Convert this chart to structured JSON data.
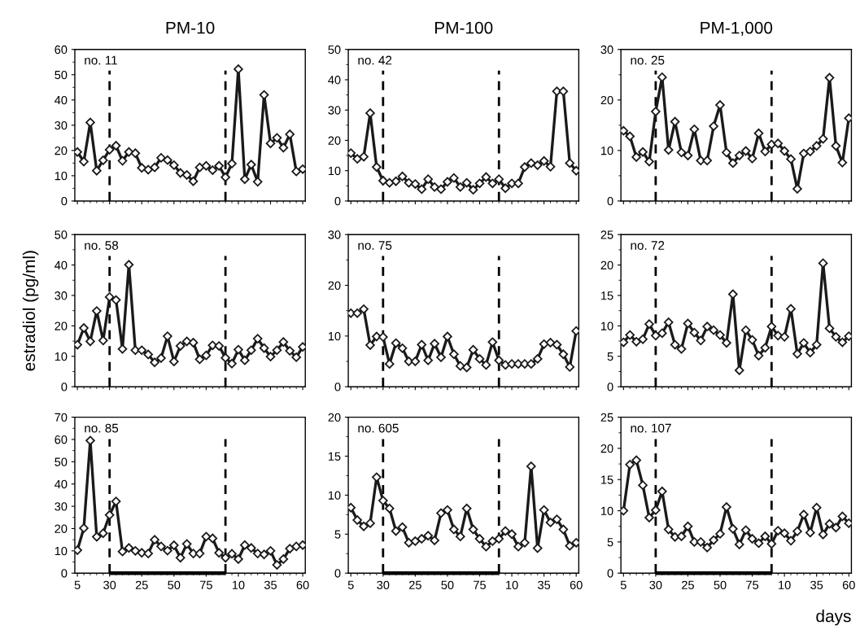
{
  "chart_data": [
    {
      "type": "line",
      "title": "PM-10",
      "annotations": [
        "no. 11"
      ],
      "categories": [
        "5",
        null,
        null,
        null,
        null,
        "30",
        null,
        null,
        null,
        null,
        "25",
        null,
        null,
        null,
        null,
        "50",
        null,
        null,
        null,
        null,
        "75",
        null,
        null,
        null,
        null,
        "10",
        null,
        null,
        null,
        null,
        "35",
        null,
        null,
        null,
        null,
        "60"
      ],
      "ylim": [
        0,
        60
      ],
      "yticks": [
        0,
        10,
        20,
        30,
        40,
        50,
        60
      ],
      "tick_labels": "y",
      "marker": "diamond",
      "line_style": "solid",
      "series": [
        {
          "color": "#1a1a1a",
          "values": [
            19.4,
            15.6,
            31.1,
            12,
            16.1,
            20.3,
            21.9,
            15.9,
            19.4,
            18.9,
            13.1,
            12.4,
            13.3,
            17.1,
            16.2,
            14.2,
            11.1,
            10.3,
            7.8,
            13.3,
            13.9,
            12.2,
            13.9,
            9.4,
            14.8,
            52.2,
            8.6,
            14.4,
            7.6,
            42,
            22.8,
            25,
            21.1,
            26.4,
            11.7,
            12.6
          ]
        }
      ]
    },
    {
      "type": "line",
      "title": "PM-100",
      "annotations": [
        "no. 42"
      ],
      "categories": [
        "5",
        null,
        null,
        null,
        null,
        "30",
        null,
        null,
        null,
        null,
        "25",
        null,
        null,
        null,
        null,
        "50",
        null,
        null,
        null,
        null,
        "75",
        null,
        null,
        null,
        null,
        "10",
        null,
        null,
        null,
        null,
        "35",
        null,
        null,
        null,
        null,
        "60"
      ],
      "ylim": [
        0,
        50
      ],
      "yticks": [
        0,
        10,
        20,
        30,
        40,
        50
      ],
      "tick_labels": "y",
      "marker": "diamond",
      "line_style": "solid",
      "series": [
        {
          "color": "#1a1a1a",
          "values": [
            15.8,
            13.9,
            14.6,
            29,
            11.2,
            6.7,
            6.0,
            6.5,
            8.1,
            6.0,
            5.6,
            3.9,
            7.2,
            4.6,
            3.9,
            6.3,
            7.6,
            4.6,
            6.0,
            3.7,
            5.8,
            7.9,
            5.8,
            7.2,
            4.2,
            5.8,
            5.8,
            11.2,
            12.5,
            11.8,
            13.2,
            11.3,
            36.2,
            36.2,
            12.5,
            10.0
          ]
        }
      ]
    },
    {
      "type": "line",
      "title": "PM-1,000",
      "annotations": [
        "no. 25"
      ],
      "categories": [
        "5",
        null,
        null,
        null,
        null,
        "30",
        null,
        null,
        null,
        null,
        "25",
        null,
        null,
        null,
        null,
        "50",
        null,
        null,
        null,
        null,
        "75",
        null,
        null,
        null,
        null,
        "10",
        null,
        null,
        null,
        null,
        "35",
        null,
        null,
        null,
        null,
        "60"
      ],
      "ylim": [
        0,
        30
      ],
      "yticks": [
        0,
        10,
        20,
        30
      ],
      "tick_labels": "y",
      "marker": "diamond",
      "line_style": "solid",
      "series": [
        {
          "color": "#1a1a1a",
          "values": [
            13.9,
            12.8,
            8.7,
            9.7,
            7.8,
            17.7,
            24.5,
            10.1,
            15.7,
            9.6,
            9.0,
            14.2,
            8.0,
            8.0,
            14.8,
            19.0,
            9.6,
            7.5,
            9.0,
            9.9,
            8.4,
            13.4,
            9.8,
            11.2,
            11.4,
            9.9,
            8.3,
            2.4,
            9.4,
            9.8,
            10.9,
            12.3,
            24.4,
            10.9,
            7.6,
            16.4
          ]
        }
      ]
    },
    {
      "type": "line",
      "ylabel": "estradiol (pg/ml)",
      "annotations": [
        "no. 58"
      ],
      "categories": [
        "5",
        null,
        null,
        null,
        null,
        "30",
        null,
        null,
        null,
        null,
        "25",
        null,
        null,
        null,
        null,
        "50",
        null,
        null,
        null,
        null,
        "75",
        null,
        null,
        null,
        null,
        "10",
        null,
        null,
        null,
        null,
        "35",
        null,
        null,
        null,
        null,
        "60"
      ],
      "ylim": [
        0,
        50
      ],
      "yticks": [
        0,
        10,
        20,
        30,
        40,
        50
      ],
      "tick_labels": "y",
      "marker": "diamond",
      "line_style": "solid",
      "series": [
        {
          "color": "#1a1a1a",
          "values": [
            13.8,
            19.3,
            14.9,
            24.9,
            15.2,
            29.5,
            28.5,
            12.4,
            40.1,
            12.0,
            12.0,
            10.6,
            8.0,
            9.4,
            16.6,
            8.3,
            13.4,
            14.9,
            14.5,
            9.0,
            10.3,
            13.6,
            13.4,
            9.5,
            7.6,
            12.2,
            8.7,
            12.0,
            15.8,
            12.7,
            9.9,
            12.0,
            14.7,
            11.8,
            9.7,
            13.1
          ]
        }
      ]
    },
    {
      "type": "line",
      "annotations": [
        "no. 75"
      ],
      "categories": [
        "5",
        null,
        null,
        null,
        null,
        "30",
        null,
        null,
        null,
        null,
        "25",
        null,
        null,
        null,
        null,
        "50",
        null,
        null,
        null,
        null,
        "75",
        null,
        null,
        null,
        null,
        "10",
        null,
        null,
        null,
        null,
        "35",
        null,
        null,
        null,
        null,
        "60"
      ],
      "ylim": [
        0,
        30
      ],
      "yticks": [
        0,
        10,
        20,
        30
      ],
      "tick_labels": "y",
      "marker": "diamond",
      "line_style": "solid",
      "series": [
        {
          "color": "#1a1a1a",
          "values": [
            14.5,
            14.5,
            15.3,
            8.2,
            9.9,
            9.8,
            4.5,
            8.6,
            7.6,
            5.0,
            5.0,
            8.3,
            5.2,
            8.5,
            5.8,
            9.9,
            6.4,
            4.1,
            3.8,
            7.3,
            5.5,
            4.3,
            8.8,
            5.2,
            4.3,
            4.5,
            4.5,
            4.5,
            4.5,
            5.5,
            8.4,
            8.7,
            8.3,
            6.4,
            3.9,
            11.0
          ]
        }
      ]
    },
    {
      "type": "line",
      "annotations": [
        "no. 72"
      ],
      "categories": [
        "5",
        null,
        null,
        null,
        null,
        "30",
        null,
        null,
        null,
        null,
        "25",
        null,
        null,
        null,
        null,
        "50",
        null,
        null,
        null,
        null,
        "75",
        null,
        null,
        null,
        null,
        "10",
        null,
        null,
        null,
        null,
        "35",
        null,
        null,
        null,
        null,
        "60"
      ],
      "ylim": [
        0,
        25
      ],
      "yticks": [
        0,
        5,
        10,
        15,
        20,
        25
      ],
      "tick_labels": "y",
      "marker": "diamond",
      "line_style": "solid",
      "series": [
        {
          "color": "#1a1a1a",
          "values": [
            7.3,
            8.5,
            7.4,
            7.8,
            10.3,
            8.4,
            8.8,
            10.6,
            6.9,
            6.2,
            10.4,
            8.9,
            7.6,
            9.9,
            9.3,
            8.5,
            7.2,
            15.2,
            2.7,
            9.3,
            7.7,
            5.1,
            6.4,
            9.9,
            8.4,
            8.2,
            12.8,
            5.4,
            7.2,
            5.6,
            6.9,
            20.3,
            9.6,
            8.2,
            7.3,
            8.3
          ]
        }
      ]
    },
    {
      "type": "line",
      "annotations": [
        "no. 85"
      ],
      "categories": [
        "5",
        null,
        null,
        null,
        null,
        "30",
        null,
        null,
        null,
        null,
        "25",
        null,
        null,
        null,
        null,
        "50",
        null,
        null,
        null,
        null,
        "75",
        null,
        null,
        null,
        null,
        "10",
        null,
        null,
        null,
        null,
        "35",
        null,
        null,
        null,
        null,
        "60"
      ],
      "ylim": [
        0,
        70
      ],
      "yticks": [
        0,
        10,
        20,
        30,
        40,
        50,
        60,
        70
      ],
      "marker": "diamond",
      "line_style": "solid",
      "series": [
        {
          "color": "#1a1a1a",
          "values": [
            10.3,
            20.2,
            59.5,
            16.3,
            17.9,
            26.1,
            32.2,
            9.7,
            11.3,
            10.0,
            9.1,
            8.8,
            15.0,
            12.0,
            10.1,
            12.5,
            6.9,
            13.1,
            8.8,
            8.8,
            16.4,
            15.6,
            9.1,
            6.9,
            8.7,
            6.3,
            12.6,
            11.3,
            8.8,
            8.4,
            10.0,
            3.7,
            6.3,
            11.0,
            12.0,
            12.6
          ]
        }
      ]
    },
    {
      "type": "line",
      "annotations": [
        "no. 605"
      ],
      "categories": [
        "5",
        null,
        null,
        null,
        null,
        "30",
        null,
        null,
        null,
        null,
        "25",
        null,
        null,
        null,
        null,
        "50",
        null,
        null,
        null,
        null,
        "75",
        null,
        null,
        null,
        null,
        "10",
        null,
        null,
        null,
        null,
        "35",
        null,
        null,
        null,
        null,
        "60"
      ],
      "ylim": [
        0,
        20
      ],
      "yticks": [
        0,
        5,
        10,
        15,
        20
      ],
      "marker": "diamond",
      "line_style": "solid",
      "series": [
        {
          "color": "#1a1a1a",
          "values": [
            8.4,
            6.8,
            6.0,
            6.4,
            12.3,
            9.3,
            8.3,
            5.4,
            5.9,
            3.9,
            4.1,
            4.4,
            4.8,
            4.2,
            7.7,
            8.1,
            5.6,
            4.7,
            8.3,
            5.6,
            4.4,
            3.4,
            4.1,
            4.4,
            5.4,
            5.0,
            3.4,
            3.9,
            13.7,
            3.2,
            8.1,
            6.5,
            6.9,
            5.6,
            3.5,
            3.9
          ]
        }
      ]
    },
    {
      "type": "line",
      "xlabel": "days",
      "annotations": [
        "no. 107"
      ],
      "categories": [
        "5",
        null,
        null,
        null,
        null,
        "30",
        null,
        null,
        null,
        null,
        "25",
        null,
        null,
        null,
        null,
        "50",
        null,
        null,
        null,
        null,
        "75",
        null,
        null,
        null,
        null,
        "10",
        null,
        null,
        null,
        null,
        "35",
        null,
        null,
        null,
        null,
        "60"
      ],
      "ylim": [
        0,
        25
      ],
      "yticks": [
        0,
        5,
        10,
        15,
        20,
        25
      ],
      "marker": "diamond",
      "line_style": "solid",
      "series": [
        {
          "color": "#1a1a1a",
          "values": [
            10.0,
            17.4,
            18.1,
            14.1,
            8.9,
            10.1,
            13.1,
            7.0,
            5.8,
            5.9,
            7.5,
            5.0,
            5.0,
            4.1,
            5.3,
            6.3,
            10.6,
            7.1,
            4.6,
            6.9,
            5.5,
            4.8,
            5.9,
            4.7,
            6.8,
            6.4,
            5.2,
            6.7,
            9.4,
            6.5,
            10.5,
            6.2,
            7.9,
            7.3,
            9.1,
            8.0
          ]
        }
      ]
    }
  ]
}
